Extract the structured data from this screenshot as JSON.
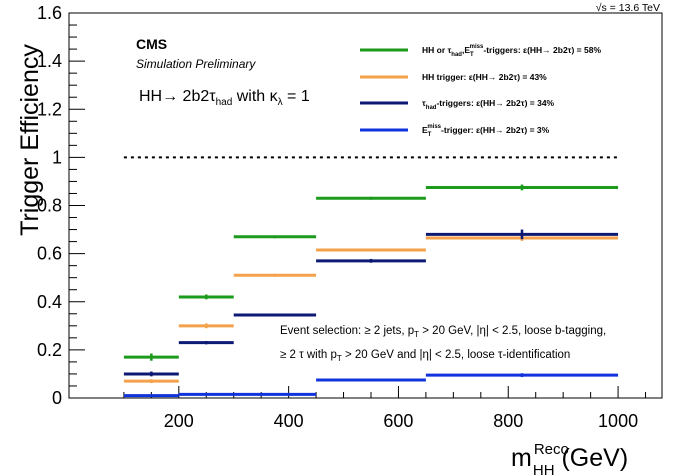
{
  "chart_data": {
    "type": "bar",
    "title": "",
    "xlabel": "m_HH^Reco (GeV)",
    "ylabel": "Trigger Efficiency",
    "xlim": [
      0,
      1080
    ],
    "ylim": [
      0,
      1.6
    ],
    "x_ticks": [
      200,
      400,
      600,
      800,
      1000
    ],
    "x_tick_labels": [
      "200",
      "400",
      "600",
      "800",
      "1000"
    ],
    "y_ticks": [
      0,
      0.2,
      0.4,
      0.6,
      0.8,
      1,
      1.2,
      1.4,
      1.6
    ],
    "y_tick_labels": [
      "0",
      "0.2",
      "0.4",
      "0.6",
      "0.8",
      "1",
      "1.2",
      "1.4",
      "1.6"
    ],
    "grid": false,
    "legend_position": "top-right",
    "reference_line": {
      "y": 1.0,
      "style": "dotted",
      "x_range": [
        100,
        1000
      ]
    },
    "bin_edges": [
      100,
      200,
      300,
      450,
      650,
      1000
    ],
    "series": [
      {
        "name": "HH or τ_had,E_T^miss-triggers: ε(HH→ 2b2τ) = 58%",
        "color": "#1b9a1b",
        "values": [
          0.17,
          0.42,
          0.67,
          0.83,
          0.875
        ],
        "errors": [
          0.015,
          0.01,
          0.006,
          0.006,
          0.012
        ]
      },
      {
        "name": "HH trigger: ε(HH→ 2b2τ) = 43%",
        "color": "#f5a14b",
        "values": [
          0.07,
          0.3,
          0.51,
          0.615,
          0.665
        ],
        "errors": [
          0.008,
          0.01,
          0.006,
          0.006,
          0.012
        ]
      },
      {
        "name": "τ_had-triggers: ε(HH→ 2b2τ) = 34%",
        "color": "#0d1a73",
        "values": [
          0.1,
          0.23,
          0.345,
          0.57,
          0.68
        ],
        "errors": [
          0.01,
          0.007,
          0.006,
          0.008,
          0.02
        ]
      },
      {
        "name": "E_T^miss-trigger: ε(HH→ 2b2τ) = 3%",
        "color": "#1133dd",
        "values": [
          0.01,
          0.015,
          0.015,
          0.075,
          0.095
        ],
        "errors": [
          0.004,
          0.003,
          0.002,
          0.004,
          0.008
        ]
      }
    ]
  },
  "labels": {
    "sqrt_s": "√s = 13.6 TeV",
    "experiment": "CMS",
    "status": "Simulation Preliminary",
    "process_main": "HH→ 2b2τ",
    "process_sub": "had",
    "kappa_pre": " with κ",
    "kappa_sub": "λ",
    "kappa_post": " = 1",
    "selection_line1_a": "Event selection: ≥ 2 jets, p",
    "selection_line1_sub": "T",
    "selection_line1_b": " > 20 GeV, |η| < 2.5,  loose b-tagging,",
    "selection_line2_a": "≥ 2 τ with p",
    "selection_line2_sub": "T",
    "selection_line2_b": " > 20 GeV and |η| < 2.5, loose τ-identification",
    "xlabel_main": "m",
    "xlabel_sup": "Reco",
    "xlabel_sub": "HH",
    "xlabel_unit": " (GeV)"
  },
  "legend": {
    "entries": [
      {
        "pre": "HH or τ",
        "sub1": "had",
        "mid": ",E",
        "sub2": "T",
        "sup2": "miss",
        "post": "-triggers: ε(HH→ 2b2τ) = 58%"
      },
      {
        "pre": "HH trigger: ε(HH→ 2b2τ) = 43%"
      },
      {
        "pre": "τ",
        "sub1": "had",
        "post": "-triggers: ε(HH→ 2b2τ) = 34%"
      },
      {
        "pre": "E",
        "sub1": "T",
        "sup1": "miss",
        "post": "-trigger: ε(HH→ 2b2τ) = 3%"
      }
    ]
  }
}
